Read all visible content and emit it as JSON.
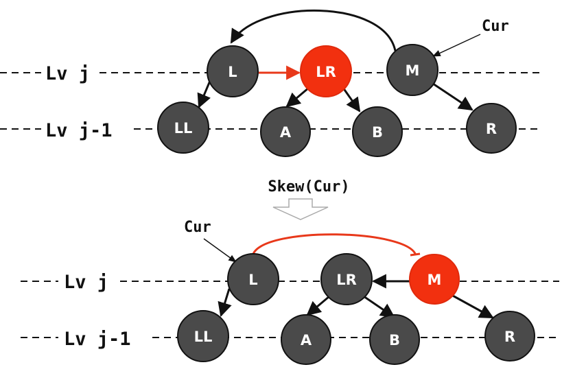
{
  "colors": {
    "node_dark": "#4a4a4a",
    "node_red": "#f2300f",
    "edge": "#111111",
    "red_edge": "#e8381a"
  },
  "top": {
    "level_j": "Lv j",
    "level_j1": "Lv j-1",
    "cur_label": "Cur",
    "nodes": {
      "L": "L",
      "LR": "LR",
      "M": "M",
      "LL": "LL",
      "A": "A",
      "B": "B",
      "R": "R"
    }
  },
  "transition": {
    "label": "Skew(Cur)"
  },
  "bottom": {
    "level_j": "Lv j",
    "level_j1": "Lv j-1",
    "cur_label": "Cur",
    "nodes": {
      "L": "L",
      "LR": "LR",
      "M": "M",
      "LL": "LL",
      "A": "A",
      "B": "B",
      "R": "R"
    }
  }
}
